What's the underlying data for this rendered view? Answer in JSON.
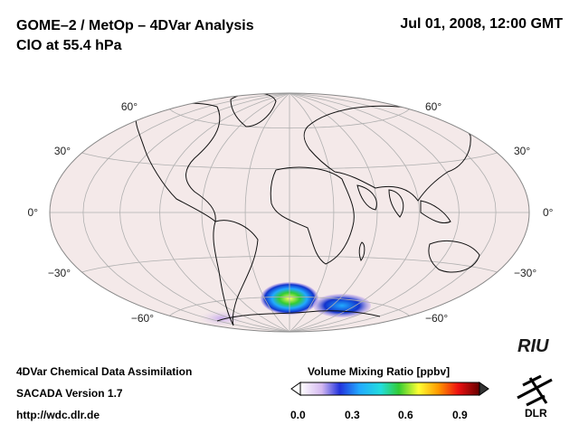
{
  "header": {
    "title_line1": "GOME–2 / MetOp – 4DVar Analysis",
    "title_line2": "ClO at 55.4 hPa",
    "date": "Jul 01, 2008, 12:00 GMT"
  },
  "map": {
    "projection": "Hammer-Aitoff",
    "background_color": "#f4e9e9",
    "lat_labels_left": [
      "60°",
      "30°",
      "0°",
      "−30°",
      "−60°"
    ],
    "lat_labels_right": [
      "60°",
      "30°",
      "0°",
      "−30°",
      "−60°"
    ]
  },
  "footer": {
    "line1": "4DVar Chemical Data Assimilation",
    "line2": "SACADA Version 1.7",
    "line3": "http://wdc.dlr.de"
  },
  "colorbar": {
    "title": "Volume Mixing Ratio [ppbv]",
    "ticks": [
      "0.0",
      "0.3",
      "0.6",
      "0.9"
    ],
    "tick_values": [
      0.0,
      0.3,
      0.6,
      0.9
    ],
    "range": [
      0.0,
      1.0
    ]
  },
  "logos": {
    "riu": "RIU",
    "dlr": "DLR"
  }
}
